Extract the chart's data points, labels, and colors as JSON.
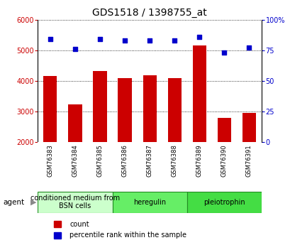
{
  "title": "GDS1518 / 1398755_at",
  "samples": [
    "GSM76383",
    "GSM76384",
    "GSM76385",
    "GSM76386",
    "GSM76387",
    "GSM76388",
    "GSM76389",
    "GSM76390",
    "GSM76391"
  ],
  "counts": [
    4150,
    3220,
    4330,
    4100,
    4175,
    4100,
    5150,
    2780,
    2950
  ],
  "percentiles": [
    84,
    76,
    84,
    83,
    83,
    83,
    86,
    73,
    77
  ],
  "ylim_left": [
    2000,
    6000
  ],
  "ylim_right": [
    0,
    100
  ],
  "yticks_left": [
    2000,
    3000,
    4000,
    5000,
    6000
  ],
  "yticks_right": [
    0,
    25,
    50,
    75,
    100
  ],
  "bar_color": "#cc0000",
  "dot_color": "#0000cc",
  "gridline_color": "#000000",
  "sample_bg_color": "#d3d3d3",
  "sample_border_color": "#ffffff",
  "groups": [
    {
      "label": "conditioned medium from\nBSN cells",
      "start": 0,
      "end": 3,
      "color": "#ccffcc"
    },
    {
      "label": "heregulin",
      "start": 3,
      "end": 6,
      "color": "#66ee66"
    },
    {
      "label": "pleiotrophin",
      "start": 6,
      "end": 9,
      "color": "#44dd44"
    }
  ],
  "agent_label": "agent",
  "legend_count_label": "count",
  "legend_percentile_label": "percentile rank within the sample",
  "title_fontsize": 10,
  "tick_fontsize": 7,
  "sample_fontsize": 6,
  "group_fontsize": 7,
  "legend_fontsize": 7
}
